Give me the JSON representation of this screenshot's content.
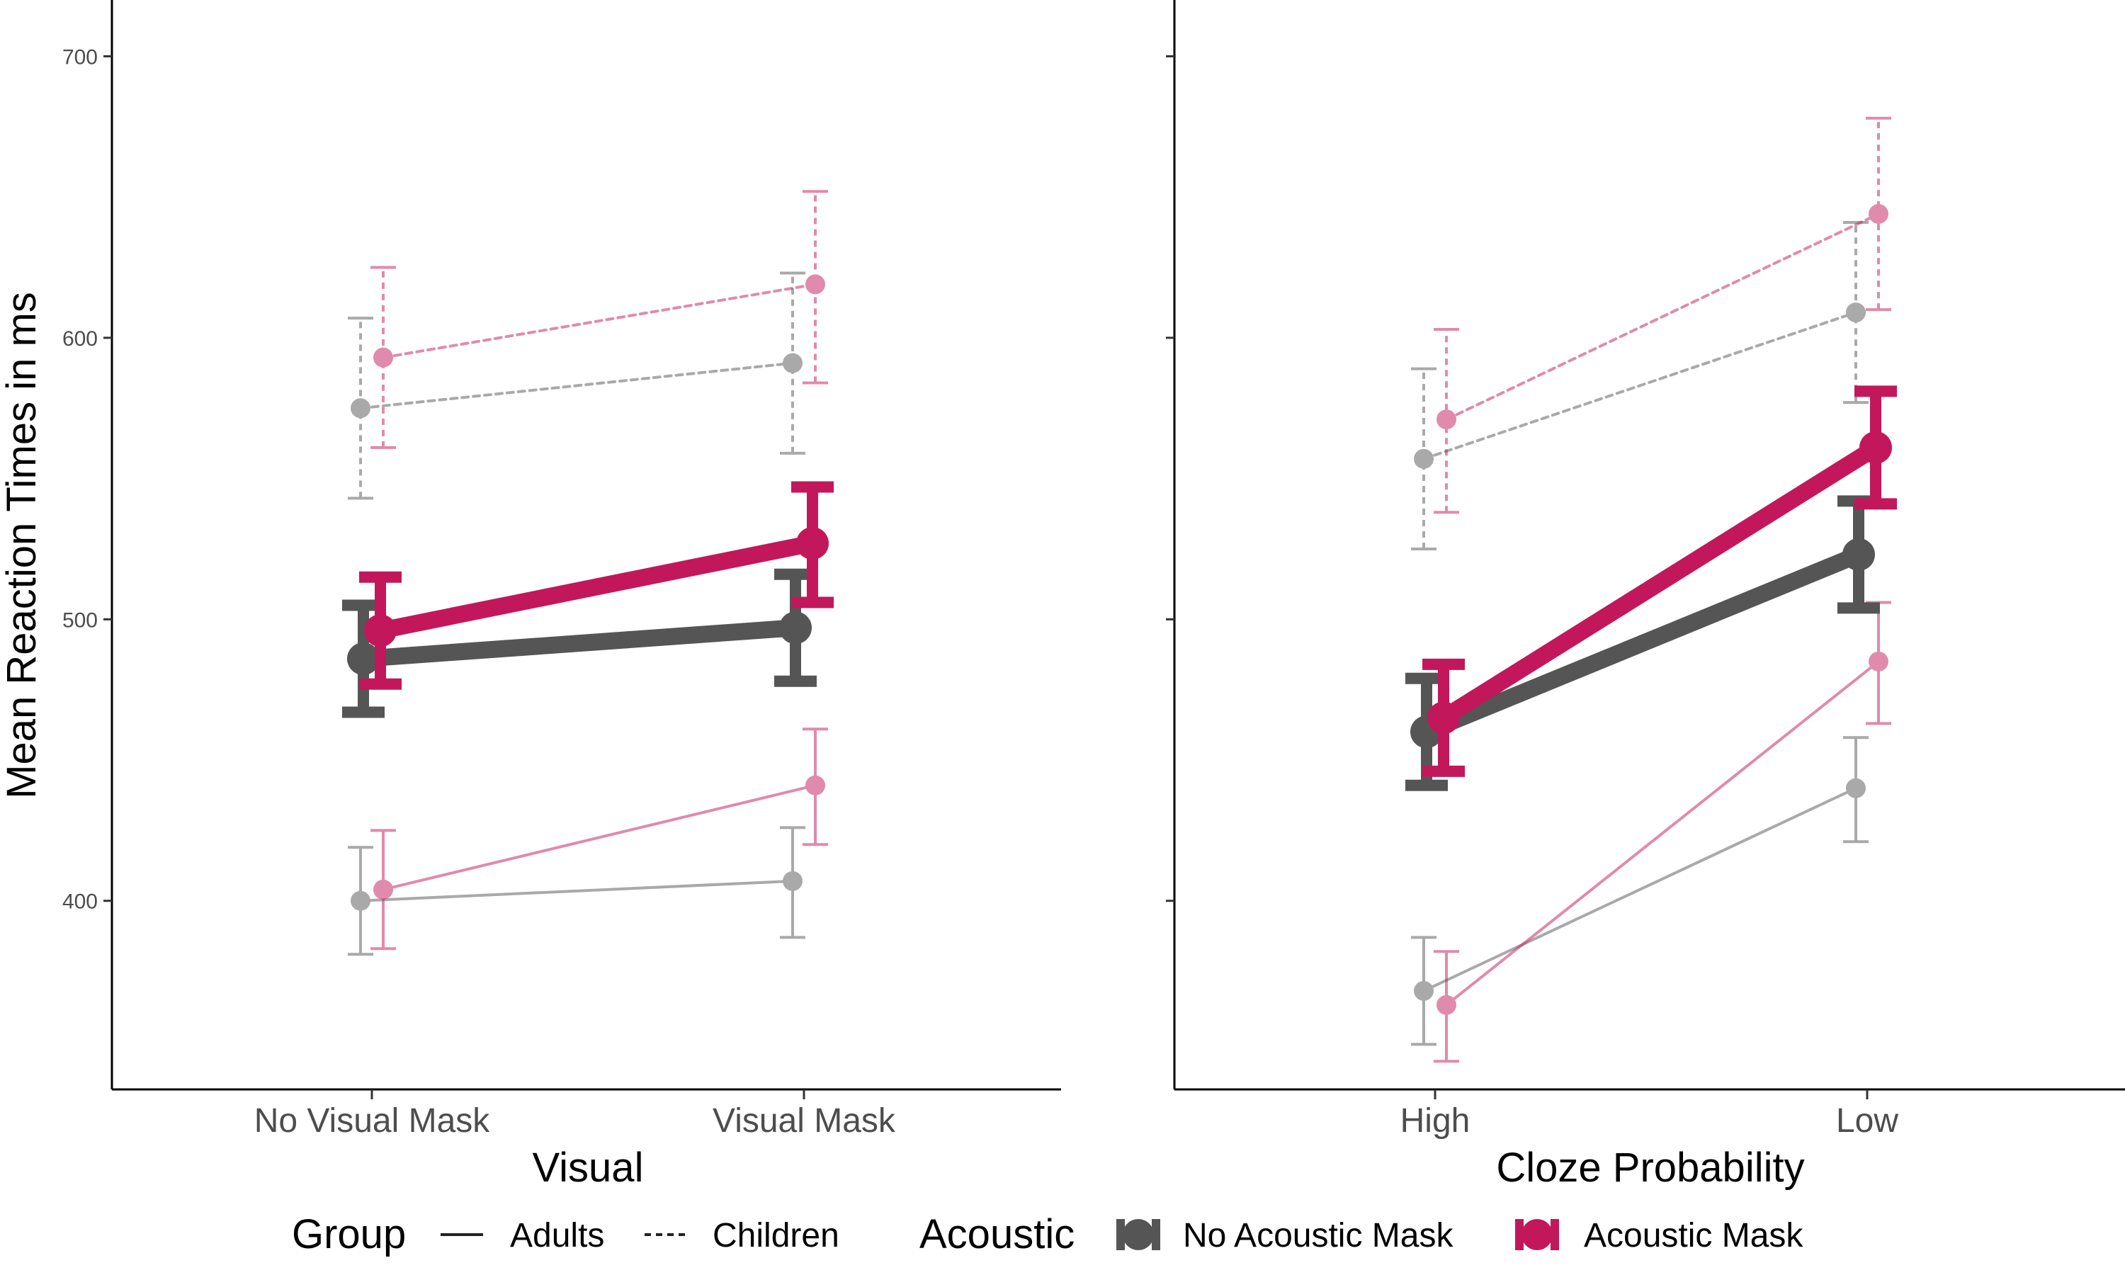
{
  "chart_data": {
    "type": "line",
    "ylabel": "Mean Reaction Times in ms",
    "ylim": [
      333,
      720
    ],
    "yticks": [
      400,
      500,
      600,
      700
    ],
    "colors": {
      "no_acoustic_mask": "#555555",
      "acoustic_mask": "#c2185b"
    },
    "legend": {
      "position": "bottom",
      "group": {
        "title": "Group",
        "items": [
          {
            "label": "Adults",
            "line": "solid"
          },
          {
            "label": "Children",
            "line": "dashed"
          }
        ]
      },
      "acoustic": {
        "title": "Acoustic",
        "items": [
          {
            "label": "No Acoustic Mask",
            "color": "#555555"
          },
          {
            "label": "Acoustic Mask",
            "color": "#c2185b"
          }
        ]
      }
    },
    "panels": [
      {
        "xlabel": "Visual",
        "categories": [
          "No Visual Mask",
          "Visual Mask"
        ],
        "series": [
          {
            "group": "Overall",
            "acoustic": "No Acoustic Mask",
            "values": [
              486,
              497
            ],
            "errors": [
              [
                467,
                505
              ],
              [
                478,
                516
              ]
            ]
          },
          {
            "group": "Overall",
            "acoustic": "Acoustic Mask",
            "values": [
              496,
              527
            ],
            "errors": [
              [
                477,
                515
              ],
              [
                506,
                547
              ]
            ]
          },
          {
            "group": "Adults",
            "acoustic": "No Acoustic Mask",
            "values": [
              400,
              407
            ],
            "errors": [
              [
                381,
                419
              ],
              [
                387,
                426
              ]
            ]
          },
          {
            "group": "Adults",
            "acoustic": "Acoustic Mask",
            "values": [
              404,
              441
            ],
            "errors": [
              [
                383,
                425
              ],
              [
                420,
                461
              ]
            ]
          },
          {
            "group": "Children",
            "acoustic": "No Acoustic Mask",
            "values": [
              575,
              591
            ],
            "errors": [
              [
                543,
                607
              ],
              [
                559,
                623
              ]
            ]
          },
          {
            "group": "Children",
            "acoustic": "Acoustic Mask",
            "values": [
              593,
              619
            ],
            "errors": [
              [
                561,
                625
              ],
              [
                584,
                652
              ]
            ]
          }
        ]
      },
      {
        "xlabel": "Cloze Probability",
        "categories": [
          "High",
          "Low"
        ],
        "series": [
          {
            "group": "Overall",
            "acoustic": "No Acoustic Mask",
            "values": [
              460,
              523
            ],
            "errors": [
              [
                441,
                479
              ],
              [
                504,
                542
              ]
            ]
          },
          {
            "group": "Overall",
            "acoustic": "Acoustic Mask",
            "values": [
              465,
              561
            ],
            "errors": [
              [
                446,
                484
              ],
              [
                541,
                581
              ]
            ]
          },
          {
            "group": "Adults",
            "acoustic": "No Acoustic Mask",
            "values": [
              368,
              440
            ],
            "errors": [
              [
                349,
                387
              ],
              [
                421,
                458
              ]
            ]
          },
          {
            "group": "Adults",
            "acoustic": "Acoustic Mask",
            "values": [
              363,
              485
            ],
            "errors": [
              [
                343,
                382
              ],
              [
                463,
                506
              ]
            ]
          },
          {
            "group": "Children",
            "acoustic": "No Acoustic Mask",
            "values": [
              557,
              609
            ],
            "errors": [
              [
                525,
                589
              ],
              [
                577,
                641
              ]
            ]
          },
          {
            "group": "Children",
            "acoustic": "Acoustic Mask",
            "values": [
              571,
              644
            ],
            "errors": [
              [
                538,
                603
              ],
              [
                610,
                678
              ]
            ]
          }
        ]
      }
    ]
  }
}
